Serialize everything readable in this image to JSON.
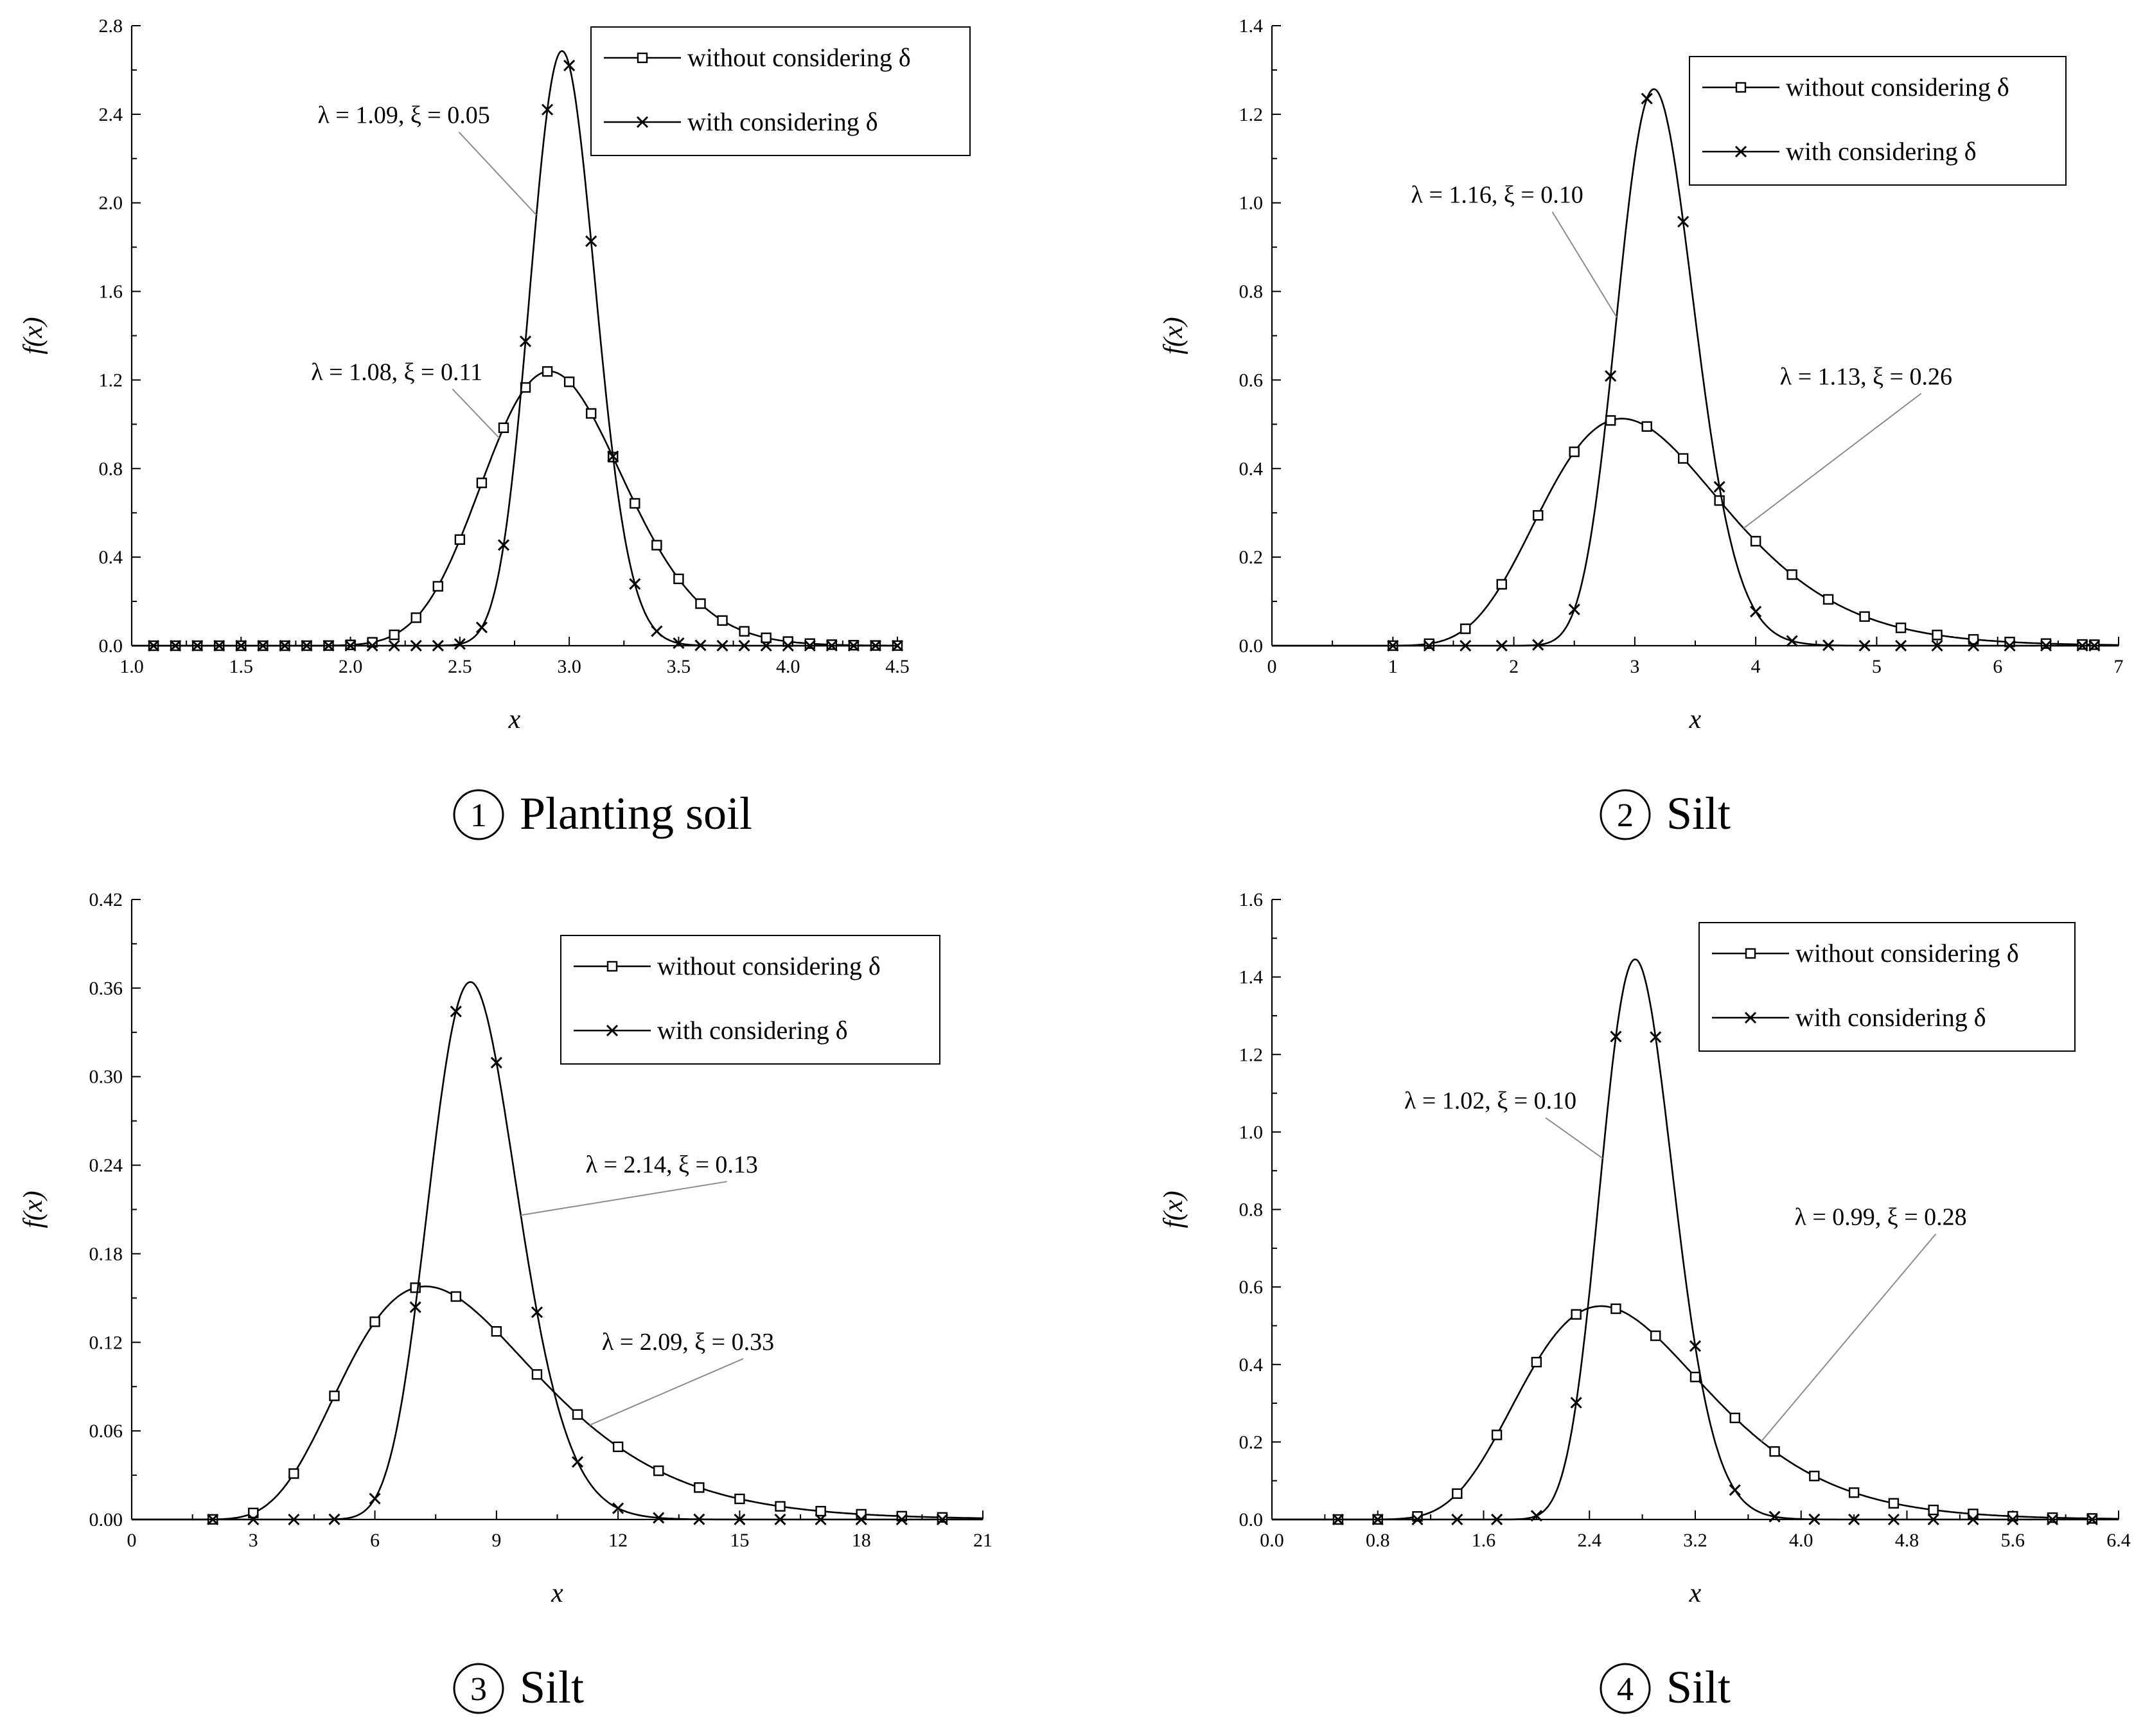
{
  "chart_data": [
    {
      "type": "line",
      "caption": {
        "num": "1",
        "text": "Planting soil"
      },
      "xlabel": "x",
      "ylabel": "f(x)",
      "xlim": [
        1.0,
        4.5
      ],
      "ylim": [
        0,
        2.8
      ],
      "xticks": [
        "1.0",
        "1.5",
        "2.0",
        "2.5",
        "3.0",
        "3.5",
        "4.0",
        "4.5"
      ],
      "yticks": [
        "0.0",
        "0.4",
        "0.8",
        "1.2",
        "1.6",
        "2.0",
        "2.4",
        "2.8"
      ],
      "legend": {
        "position": "top-right",
        "without": "without considering δ",
        "with": "with considering δ"
      },
      "series": [
        {
          "name": "without considering δ",
          "marker": "square",
          "lambda": 1.08,
          "xi": 0.11,
          "annotation": "λ = 1.08,  ξ = 0.11",
          "marker_x": [
            1.1,
            1.2,
            1.3,
            1.4,
            1.5,
            1.6,
            1.7,
            1.8,
            1.9,
            2.0,
            2.1,
            2.2,
            2.3,
            2.4,
            2.5,
            2.6,
            2.7,
            2.8,
            2.9,
            3.0,
            3.1,
            3.2,
            3.3,
            3.4,
            3.5,
            3.6,
            3.7,
            3.8,
            3.9,
            4.0,
            4.1,
            4.2,
            4.3,
            4.4,
            4.5
          ]
        },
        {
          "name": "with considering δ",
          "marker": "x",
          "lambda": 1.09,
          "xi": 0.05,
          "annotation": "λ = 1.09,  ξ = 0.05",
          "marker_x": [
            1.1,
            1.2,
            1.3,
            1.4,
            1.5,
            1.6,
            1.7,
            1.8,
            1.9,
            2.0,
            2.1,
            2.2,
            2.3,
            2.4,
            2.5,
            2.6,
            2.7,
            2.8,
            2.9,
            3.0,
            3.1,
            3.2,
            3.3,
            3.4,
            3.5,
            3.6,
            3.7,
            3.8,
            3.9,
            4.0,
            4.1,
            4.2,
            4.3,
            4.4,
            4.5
          ]
        }
      ],
      "annotation_targets": [
        {
          "series": 1,
          "target_x": 2.85,
          "label_anchor": [
            1.85,
            2.36
          ]
        },
        {
          "series": 0,
          "target_x": 2.68,
          "label_anchor": [
            1.82,
            1.2
          ]
        }
      ],
      "peak_values": [
        1.2,
        2.65
      ]
    },
    {
      "type": "line",
      "caption": {
        "num": "2",
        "text": "Silt"
      },
      "xlabel": "x",
      "ylabel": "f(x)",
      "xlim": [
        0,
        7
      ],
      "ylim": [
        0,
        1.4
      ],
      "xticks": [
        "0",
        "1",
        "2",
        "3",
        "4",
        "5",
        "6",
        "7"
      ],
      "yticks": [
        "0.0",
        "0.2",
        "0.4",
        "0.6",
        "0.8",
        "1.0",
        "1.2",
        "1.4"
      ],
      "legend": {
        "position": "top-right",
        "without": "without considering δ",
        "with": "with considering δ"
      },
      "series": [
        {
          "name": "without considering δ",
          "marker": "square",
          "lambda": 1.13,
          "xi": 0.26,
          "annotation": "λ = 1.13,  ξ = 0.26",
          "marker_x": [
            1.0,
            1.3,
            1.6,
            1.9,
            2.2,
            2.5,
            2.8,
            3.1,
            3.4,
            3.7,
            4.0,
            4.3,
            4.6,
            4.9,
            5.2,
            5.5,
            5.8,
            6.1,
            6.4,
            6.7,
            6.8
          ]
        },
        {
          "name": "with considering δ",
          "marker": "x",
          "lambda": 1.16,
          "xi": 0.1,
          "annotation": "λ = 1.16,  ξ = 0.10",
          "marker_x": [
            1.0,
            1.3,
            1.6,
            1.9,
            2.2,
            2.5,
            2.8,
            3.1,
            3.4,
            3.7,
            4.0,
            4.3,
            4.6,
            4.9,
            5.2,
            5.5,
            5.8,
            6.1,
            6.4,
            6.7,
            6.8
          ]
        }
      ],
      "annotation_targets": [
        {
          "series": 1,
          "target_x": 2.85,
          "label_anchor": [
            1.15,
            1.0
          ]
        },
        {
          "series": 0,
          "target_x": 3.9,
          "label_anchor": [
            4.2,
            0.59
          ]
        }
      ],
      "peak_values": [
        0.51,
        1.27
      ]
    },
    {
      "type": "line",
      "caption": {
        "num": "3",
        "text": "Silt"
      },
      "xlabel": "x",
      "ylabel": "f(x)",
      "xlim": [
        0,
        21
      ],
      "ylim": [
        0,
        0.42
      ],
      "xticks": [
        "0",
        "3",
        "6",
        "9",
        "12",
        "15",
        "18",
        "21"
      ],
      "yticks": [
        "0.00",
        "0.06",
        "0.12",
        "0.18",
        "0.24",
        "0.30",
        "0.36",
        "0.42"
      ],
      "legend": {
        "position": "top-right",
        "without": "without considering δ",
        "with": "with considering δ"
      },
      "series": [
        {
          "name": "without considering δ",
          "marker": "square",
          "lambda": 2.09,
          "xi": 0.33,
          "annotation": "λ = 2.09,  ξ = 0.33",
          "marker_x": [
            2,
            3,
            4,
            5,
            6,
            7,
            8,
            9,
            10,
            11,
            12,
            13,
            14,
            15,
            16,
            17,
            18,
            19,
            20
          ]
        },
        {
          "name": "with considering δ",
          "marker": "x",
          "lambda": 2.14,
          "xi": 0.13,
          "annotation": "λ = 2.14,  ξ = 0.13",
          "marker_x": [
            2,
            3,
            4,
            5,
            6,
            7,
            8,
            9,
            10,
            11,
            12,
            13,
            14,
            15,
            16,
            17,
            18,
            19,
            20
          ]
        }
      ],
      "annotation_targets": [
        {
          "series": 1,
          "target_x": 9.6,
          "label_anchor": [
            11.2,
            0.235
          ]
        },
        {
          "series": 0,
          "target_x": 11.3,
          "label_anchor": [
            11.6,
            0.115
          ]
        }
      ],
      "peak_values": [
        0.155,
        0.365
      ]
    },
    {
      "type": "line",
      "caption": {
        "num": "4",
        "text": "Silt"
      },
      "xlabel": "x",
      "ylabel": "f(x)",
      "xlim": [
        0,
        6.4
      ],
      "ylim": [
        0,
        1.6
      ],
      "xticks": [
        "0.0",
        "0.8",
        "1.6",
        "2.4",
        "3.2",
        "4.0",
        "4.8",
        "5.6",
        "6.4"
      ],
      "yticks": [
        "0.0",
        "0.2",
        "0.4",
        "0.6",
        "0.8",
        "1.0",
        "1.2",
        "1.4",
        "1.6"
      ],
      "legend": {
        "position": "top-right",
        "without": "without considering δ",
        "with": "with considering δ"
      },
      "series": [
        {
          "name": "without considering δ",
          "marker": "square",
          "lambda": 0.99,
          "xi": 0.28,
          "annotation": "λ = 0.99,  ξ = 0.28",
          "marker_x": [
            0.5,
            0.8,
            1.1,
            1.4,
            1.7,
            2.0,
            2.3,
            2.6,
            2.9,
            3.2,
            3.5,
            3.8,
            4.1,
            4.4,
            4.7,
            5.0,
            5.3,
            5.6,
            5.9,
            6.2
          ]
        },
        {
          "name": "with considering δ",
          "marker": "x",
          "lambda": 1.02,
          "xi": 0.1,
          "annotation": "λ = 1.02,  ξ = 0.10",
          "marker_x": [
            0.5,
            0.8,
            1.1,
            1.4,
            1.7,
            2.0,
            2.3,
            2.6,
            2.9,
            3.2,
            3.5,
            3.8,
            4.1,
            4.4,
            4.7,
            5.0,
            5.3,
            5.6,
            5.9,
            6.2
          ]
        }
      ],
      "annotation_targets": [
        {
          "series": 1,
          "target_x": 2.5,
          "label_anchor": [
            1.0,
            1.06
          ]
        },
        {
          "series": 0,
          "target_x": 3.7,
          "label_anchor": [
            3.95,
            0.76
          ]
        }
      ],
      "peak_values": [
        0.555,
        1.47
      ]
    }
  ]
}
